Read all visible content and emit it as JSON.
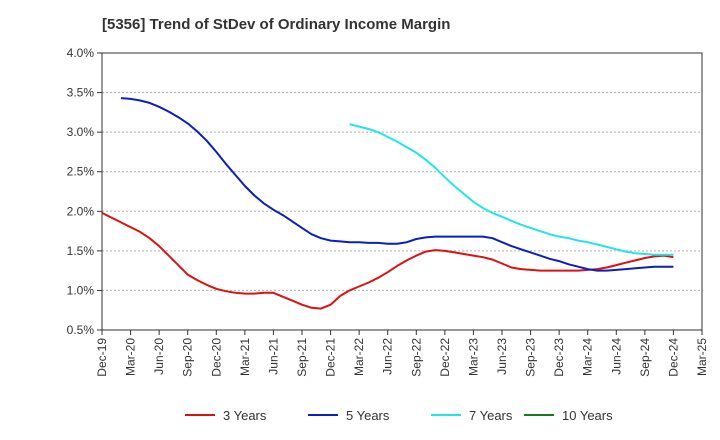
{
  "chart_data": {
    "type": "line",
    "title": "[5356]  Trend of StDev of Ordinary Income Margin",
    "xlabel": "",
    "ylabel": "",
    "y_tick_labels": [
      "0.5%",
      "1.0%",
      "1.5%",
      "2.0%",
      "2.5%",
      "3.0%",
      "3.5%",
      "4.0%"
    ],
    "y_ticks": [
      0.5,
      1.0,
      1.5,
      2.0,
      2.5,
      3.0,
      3.5,
      4.0
    ],
    "ylim": [
      0.5,
      4.0
    ],
    "x_tick_labels": [
      "Dec-19",
      "Mar-20",
      "Jun-20",
      "Sep-20",
      "Dec-20",
      "Mar-21",
      "Jun-21",
      "Sep-21",
      "Dec-21",
      "Mar-22",
      "Jun-22",
      "Sep-22",
      "Dec-22",
      "Mar-23",
      "Jun-23",
      "Sep-23",
      "Dec-23",
      "Mar-24",
      "Jun-24",
      "Sep-24",
      "Dec-24",
      "Mar-25"
    ],
    "x_range_months": [
      "2019-12",
      "2025-03"
    ],
    "grid": "horizontal dashed",
    "legend_position": "bottom",
    "series": [
      {
        "name": "3 Years",
        "color": "#dd1111",
        "points": [
          [
            "2019-12",
            1.98
          ],
          [
            "2020-01",
            1.92
          ],
          [
            "2020-02",
            1.86
          ],
          [
            "2020-03",
            1.8
          ],
          [
            "2020-04",
            1.74
          ],
          [
            "2020-05",
            1.66
          ],
          [
            "2020-06",
            1.56
          ],
          [
            "2020-07",
            1.44
          ],
          [
            "2020-08",
            1.32
          ],
          [
            "2020-09",
            1.2
          ],
          [
            "2020-10",
            1.13
          ],
          [
            "2020-11",
            1.07
          ],
          [
            "2020-12",
            1.02
          ],
          [
            "2021-01",
            0.99
          ],
          [
            "2021-02",
            0.97
          ],
          [
            "2021-03",
            0.96
          ],
          [
            "2021-04",
            0.96
          ],
          [
            "2021-05",
            0.97
          ],
          [
            "2021-06",
            0.97
          ],
          [
            "2021-07",
            0.92
          ],
          [
            "2021-08",
            0.87
          ],
          [
            "2021-09",
            0.82
          ],
          [
            "2021-10",
            0.78
          ],
          [
            "2021-11",
            0.77
          ],
          [
            "2021-12",
            0.82
          ],
          [
            "2022-01",
            0.93
          ],
          [
            "2022-02",
            1.0
          ],
          [
            "2022-03",
            1.05
          ],
          [
            "2022-04",
            1.1
          ],
          [
            "2022-05",
            1.16
          ],
          [
            "2022-06",
            1.23
          ],
          [
            "2022-07",
            1.31
          ],
          [
            "2022-08",
            1.38
          ],
          [
            "2022-09",
            1.44
          ],
          [
            "2022-10",
            1.49
          ],
          [
            "2022-11",
            1.51
          ],
          [
            "2022-12",
            1.5
          ],
          [
            "2023-01",
            1.48
          ],
          [
            "2023-02",
            1.46
          ],
          [
            "2023-03",
            1.44
          ],
          [
            "2023-04",
            1.42
          ],
          [
            "2023-05",
            1.39
          ],
          [
            "2023-06",
            1.34
          ],
          [
            "2023-07",
            1.29
          ],
          [
            "2023-08",
            1.27
          ],
          [
            "2023-09",
            1.26
          ],
          [
            "2023-10",
            1.25
          ],
          [
            "2023-11",
            1.25
          ],
          [
            "2023-12",
            1.25
          ],
          [
            "2024-01",
            1.25
          ],
          [
            "2024-02",
            1.25
          ],
          [
            "2024-03",
            1.26
          ],
          [
            "2024-04",
            1.27
          ],
          [
            "2024-05",
            1.29
          ],
          [
            "2024-06",
            1.32
          ],
          [
            "2024-07",
            1.35
          ],
          [
            "2024-08",
            1.38
          ],
          [
            "2024-09",
            1.41
          ],
          [
            "2024-10",
            1.43
          ],
          [
            "2024-11",
            1.44
          ],
          [
            "2024-12",
            1.42
          ]
        ]
      },
      {
        "name": "5 Years",
        "color": "#0a1fbf",
        "points": [
          [
            "2020-02",
            3.43
          ],
          [
            "2020-03",
            3.42
          ],
          [
            "2020-04",
            3.4
          ],
          [
            "2020-05",
            3.37
          ],
          [
            "2020-06",
            3.32
          ],
          [
            "2020-07",
            3.26
          ],
          [
            "2020-08",
            3.19
          ],
          [
            "2020-09",
            3.11
          ],
          [
            "2020-10",
            3.01
          ],
          [
            "2020-11",
            2.89
          ],
          [
            "2020-12",
            2.75
          ],
          [
            "2021-01",
            2.6
          ],
          [
            "2021-02",
            2.46
          ],
          [
            "2021-03",
            2.32
          ],
          [
            "2021-04",
            2.2
          ],
          [
            "2021-05",
            2.1
          ],
          [
            "2021-06",
            2.02
          ],
          [
            "2021-07",
            1.95
          ],
          [
            "2021-08",
            1.87
          ],
          [
            "2021-09",
            1.79
          ],
          [
            "2021-10",
            1.71
          ],
          [
            "2021-11",
            1.66
          ],
          [
            "2021-12",
            1.63
          ],
          [
            "2022-01",
            1.62
          ],
          [
            "2022-02",
            1.61
          ],
          [
            "2022-03",
            1.61
          ],
          [
            "2022-04",
            1.6
          ],
          [
            "2022-05",
            1.6
          ],
          [
            "2022-06",
            1.59
          ],
          [
            "2022-07",
            1.59
          ],
          [
            "2022-08",
            1.61
          ],
          [
            "2022-09",
            1.65
          ],
          [
            "2022-10",
            1.67
          ],
          [
            "2022-11",
            1.68
          ],
          [
            "2022-12",
            1.68
          ],
          [
            "2023-01",
            1.68
          ],
          [
            "2023-02",
            1.68
          ],
          [
            "2023-03",
            1.68
          ],
          [
            "2023-04",
            1.68
          ],
          [
            "2023-05",
            1.66
          ],
          [
            "2023-06",
            1.61
          ],
          [
            "2023-07",
            1.56
          ],
          [
            "2023-08",
            1.52
          ],
          [
            "2023-09",
            1.48
          ],
          [
            "2023-10",
            1.44
          ],
          [
            "2023-11",
            1.4
          ],
          [
            "2023-12",
            1.37
          ],
          [
            "2024-01",
            1.33
          ],
          [
            "2024-02",
            1.3
          ],
          [
            "2024-03",
            1.27
          ],
          [
            "2024-04",
            1.25
          ],
          [
            "2024-05",
            1.25
          ],
          [
            "2024-06",
            1.26
          ],
          [
            "2024-07",
            1.27
          ],
          [
            "2024-08",
            1.28
          ],
          [
            "2024-09",
            1.29
          ],
          [
            "2024-10",
            1.3
          ],
          [
            "2024-11",
            1.3
          ],
          [
            "2024-12",
            1.3
          ]
        ]
      },
      {
        "name": "7 Years",
        "color": "#22e5e5",
        "points": [
          [
            "2022-02",
            3.1
          ],
          [
            "2022-03",
            3.07
          ],
          [
            "2022-04",
            3.04
          ],
          [
            "2022-05",
            3.0
          ],
          [
            "2022-06",
            2.94
          ],
          [
            "2022-07",
            2.88
          ],
          [
            "2022-08",
            2.81
          ],
          [
            "2022-09",
            2.74
          ],
          [
            "2022-10",
            2.65
          ],
          [
            "2022-11",
            2.55
          ],
          [
            "2022-12",
            2.43
          ],
          [
            "2023-01",
            2.32
          ],
          [
            "2023-02",
            2.22
          ],
          [
            "2023-03",
            2.12
          ],
          [
            "2023-04",
            2.04
          ],
          [
            "2023-05",
            1.98
          ],
          [
            "2023-06",
            1.93
          ],
          [
            "2023-07",
            1.88
          ],
          [
            "2023-08",
            1.83
          ],
          [
            "2023-09",
            1.79
          ],
          [
            "2023-10",
            1.75
          ],
          [
            "2023-11",
            1.71
          ],
          [
            "2023-12",
            1.68
          ],
          [
            "2024-01",
            1.66
          ],
          [
            "2024-02",
            1.63
          ],
          [
            "2024-03",
            1.61
          ],
          [
            "2024-04",
            1.58
          ],
          [
            "2024-05",
            1.55
          ],
          [
            "2024-06",
            1.52
          ],
          [
            "2024-07",
            1.49
          ],
          [
            "2024-08",
            1.47
          ],
          [
            "2024-09",
            1.46
          ],
          [
            "2024-10",
            1.45
          ],
          [
            "2024-11",
            1.45
          ],
          [
            "2024-12",
            1.45
          ]
        ]
      },
      {
        "name": "10 Years",
        "color": "#1a7a1a",
        "points": []
      }
    ]
  }
}
